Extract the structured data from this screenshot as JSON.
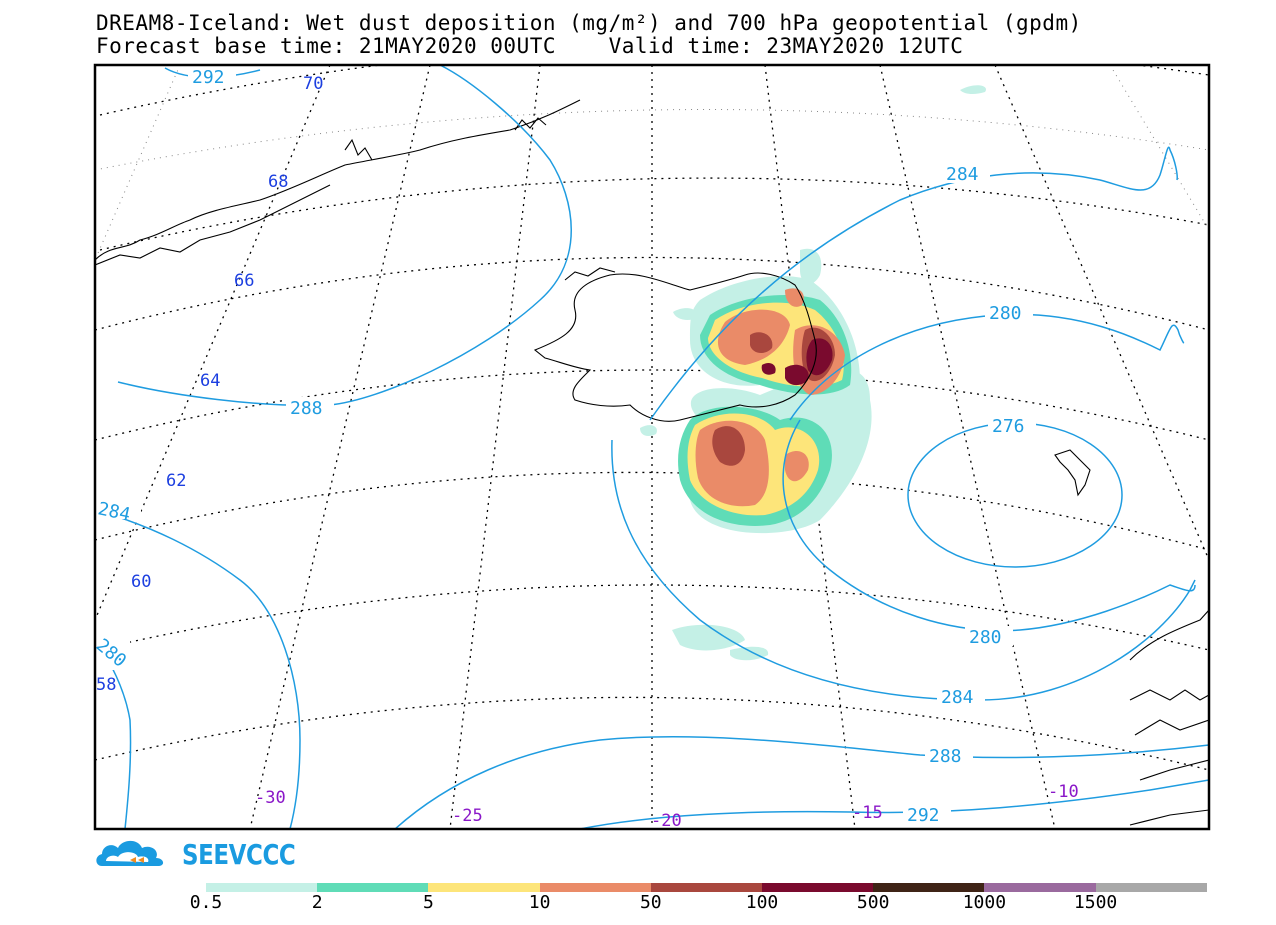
{
  "title": {
    "line1": "DREAM8-Iceland: Wet dust deposition (mg/m²) and 700 hPa geopotential (gpdm)",
    "line2": "Forecast base time: 21MAY2020 00UTC    Valid time: 23MAY2020 12UTC"
  },
  "map": {
    "variable": "Wet dust deposition",
    "units": "mg/m²",
    "contour_variable": "700 hPa geopotential",
    "contour_units": "gpdm",
    "latitude_labels": [
      "70",
      "68",
      "66",
      "64",
      "62",
      "60",
      "58"
    ],
    "longitude_labels": [
      "-30",
      "-25",
      "-20",
      "-15",
      "-10"
    ],
    "contour_labels": [
      "292",
      "284",
      "280",
      "276",
      "288",
      "284",
      "280",
      "280",
      "284",
      "288",
      "292"
    ],
    "colors": {
      "contour": "#1f9ce0",
      "lat_label": "#1c3fe0",
      "lon_label": "#8a17c8"
    }
  },
  "logo": {
    "text": "SEEVCCC"
  },
  "legend": {
    "levels": [
      "0.5",
      "2",
      "5",
      "10",
      "50",
      "100",
      "500",
      "1000",
      "1500"
    ],
    "colors": [
      "#c4f0e6",
      "#5fdcb7",
      "#fde57a",
      "#ea8b68",
      "#a9473e",
      "#7a0a2e",
      "#3f2416",
      "#9a6a9e",
      "#a8a8a8"
    ]
  }
}
